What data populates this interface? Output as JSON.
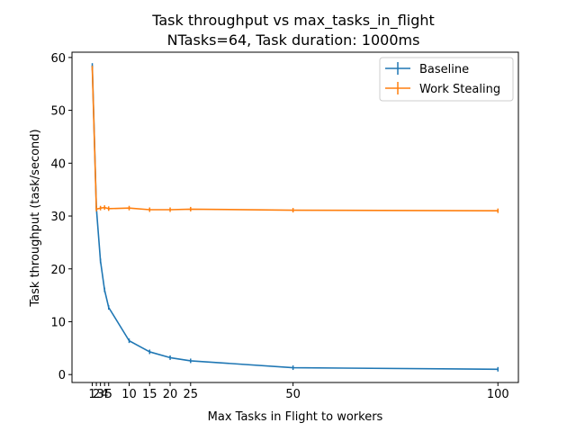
{
  "chart_data": {
    "type": "line",
    "title_line1": "Task throughput vs max_tasks_in_flight",
    "title_line2": "NTasks=64, Task duration: 1000ms",
    "xlabel": "Max Tasks in Flight to workers",
    "ylabel": "Task throughput (task/second)",
    "xlim": [
      -3.95,
      105
    ],
    "ylim": [
      -1.5,
      61
    ],
    "xticks": [
      1,
      2,
      3,
      4,
      5,
      10,
      15,
      20,
      25,
      50,
      100
    ],
    "xtick_labels": [
      "1",
      "2",
      "3",
      "4",
      "5",
      "10",
      "15",
      "20",
      "25",
      "50",
      "100"
    ],
    "yticks": [
      0,
      10,
      20,
      30,
      40,
      50,
      60
    ],
    "ytick_labels": [
      "0",
      "10",
      "20",
      "30",
      "40",
      "50",
      "60"
    ],
    "legend_position": "top-right",
    "grid": false,
    "series": [
      {
        "name": "Baseline",
        "color": "#1f77b4",
        "x": [
          1,
          2,
          3,
          4,
          5,
          10,
          15,
          20,
          25,
          50,
          100
        ],
        "y": [
          58.5,
          31.5,
          21.5,
          16.0,
          12.7,
          6.4,
          4.3,
          3.2,
          2.6,
          1.3,
          1.0
        ]
      },
      {
        "name": "Work Stealing",
        "color": "#ff7f0e",
        "x": [
          1,
          2,
          3,
          4,
          5,
          10,
          15,
          20,
          25,
          50,
          100
        ],
        "y": [
          58.0,
          31.3,
          31.5,
          31.6,
          31.4,
          31.5,
          31.2,
          31.2,
          31.3,
          31.1,
          31.0
        ]
      }
    ]
  }
}
